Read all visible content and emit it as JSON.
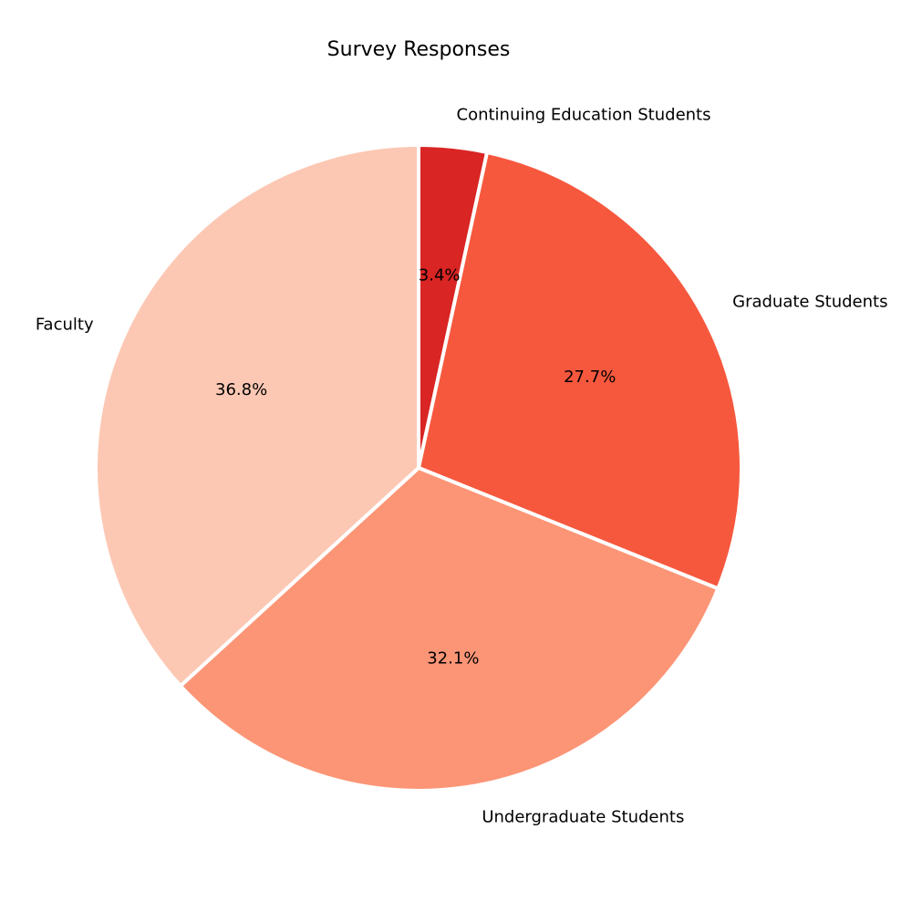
{
  "chart_data": {
    "type": "pie",
    "title": "Survey Responses",
    "start_angle_deg": 90,
    "direction": "clockwise",
    "slices": [
      {
        "label": "Continuing Education Students",
        "value": 3.4,
        "pct_label": "3.4%",
        "color": "#d92523"
      },
      {
        "label": "Graduate Students",
        "value": 27.7,
        "pct_label": "27.7%",
        "color": "#f6583e"
      },
      {
        "label": "Undergraduate Students",
        "value": 32.1,
        "pct_label": "32.1%",
        "color": "#fc9576"
      },
      {
        "label": "Faculty",
        "value": 36.8,
        "pct_label": "36.8%",
        "color": "#fcc8b4"
      }
    ]
  }
}
